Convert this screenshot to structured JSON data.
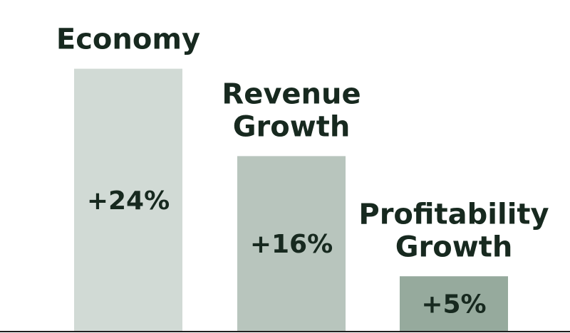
{
  "chart_data": {
    "type": "bar",
    "categories": [
      "Economy",
      "Revenue Growth",
      "Profitability Growth"
    ],
    "category_lines": [
      [
        "Economy"
      ],
      [
        "Revenue",
        "Growth"
      ],
      [
        "Profitability",
        "Growth"
      ]
    ],
    "values": [
      24,
      16,
      5
    ],
    "value_labels": [
      "+24%",
      "+16%",
      "+5%"
    ],
    "bar_colors": [
      "#d1dad5",
      "#b8c5bd",
      "#96aa9d"
    ],
    "text_color": "#17291f",
    "axis_color": "#1f1f1f",
    "ylim": [
      0,
      30
    ],
    "grid": false,
    "title": "",
    "xlabel": "",
    "ylabel": ""
  }
}
